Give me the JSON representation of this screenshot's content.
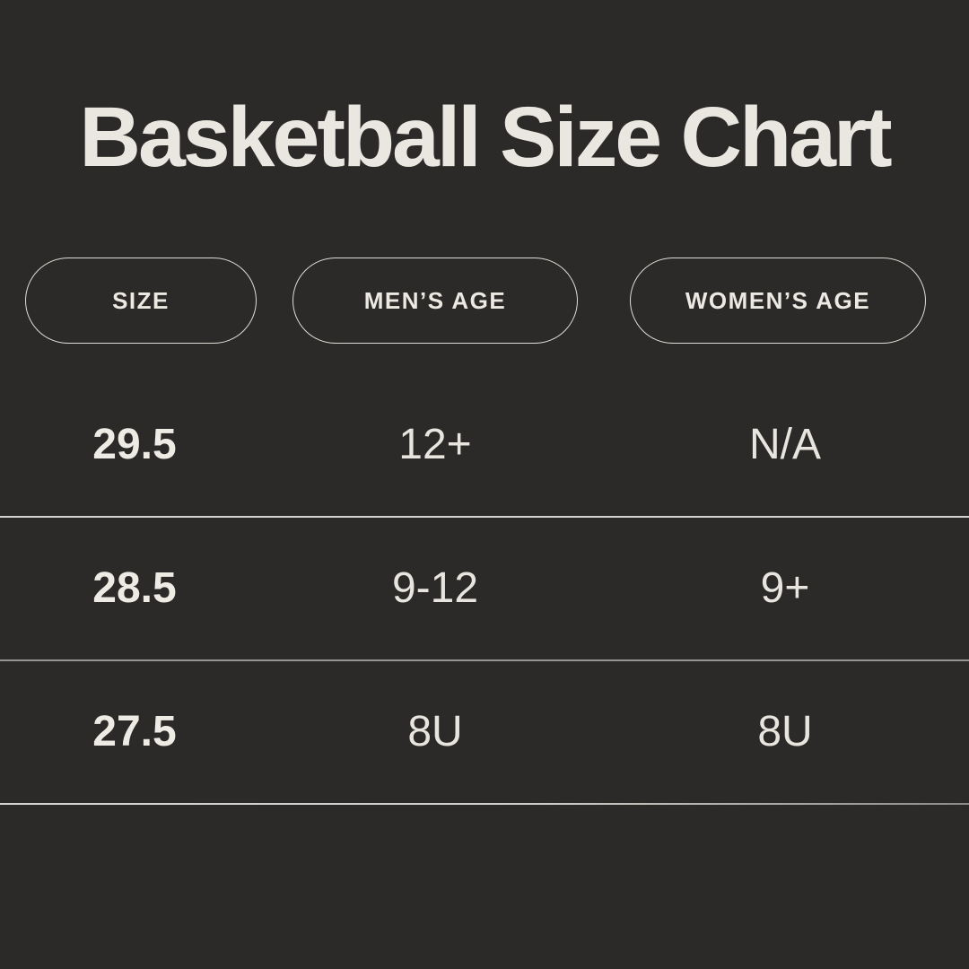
{
  "page": {
    "title": "Basketball Size Chart"
  },
  "colors": {
    "background": "#2b2a28",
    "title_text": "#e9e7e0",
    "body_text": "#e7e5de",
    "pill_border": "#dedcd6",
    "divider_top": "#d6d4ce",
    "divider_middle": "#969593",
    "divider_bottom_start": "#d6d4ce",
    "divider_bottom_end": "#8b8a88"
  },
  "chart_data": {
    "type": "table",
    "title": "Basketball Size Chart",
    "columns": [
      "SIZE",
      "MEN’S AGE",
      "WOMEN’S AGE"
    ],
    "rows": [
      [
        "29.5",
        "12+",
        "N/A"
      ],
      [
        "28.5",
        "9-12",
        "9+"
      ],
      [
        "27.5",
        "8U",
        "8U"
      ]
    ]
  },
  "table": {
    "headers": [
      {
        "label": "SIZE"
      },
      {
        "label": "MEN’S AGE"
      },
      {
        "label": "WOMEN’S AGE"
      }
    ],
    "rows": [
      {
        "size": "29.5",
        "mens_age": "12+",
        "womens_age": "N/A"
      },
      {
        "size": "28.5",
        "mens_age": "9-12",
        "womens_age": "9+"
      },
      {
        "size": "27.5",
        "mens_age": "8U",
        "womens_age": "8U"
      }
    ]
  }
}
